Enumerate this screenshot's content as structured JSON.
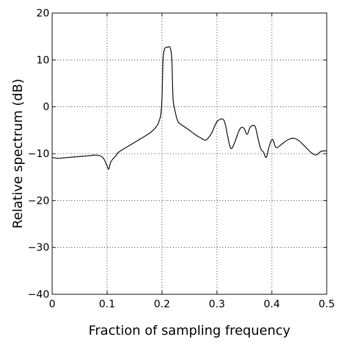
{
  "chart_data": {
    "type": "line",
    "title": "",
    "xlabel": "Fraction of sampling frequency",
    "ylabel": "Relative spectrum (dB)",
    "xlim": [
      0,
      0.5
    ],
    "ylim": [
      -40,
      20
    ],
    "xticks": [
      0,
      0.1,
      0.2,
      0.3,
      0.4,
      0.5
    ],
    "xtick_labels": [
      "0",
      "0.1",
      "0.2",
      "0.3",
      "0.4",
      "0.5"
    ],
    "yticks": [
      -40,
      -30,
      -20,
      -10,
      0,
      10,
      20
    ],
    "ytick_labels": [
      "−40",
      "−30",
      "−20",
      "−10",
      "0",
      "10",
      "20"
    ],
    "grid": true,
    "line_color": "#000000",
    "series": [
      {
        "x": [
          0.0,
          0.01,
          0.02,
          0.03,
          0.04,
          0.05,
          0.06,
          0.07,
          0.08,
          0.09,
          0.095,
          0.1,
          0.103,
          0.106,
          0.11,
          0.115,
          0.12,
          0.13,
          0.14,
          0.15,
          0.16,
          0.17,
          0.18,
          0.19,
          0.195,
          0.198,
          0.2,
          0.202,
          0.205,
          0.21,
          0.215,
          0.218,
          0.22,
          0.223,
          0.226,
          0.23,
          0.24,
          0.25,
          0.26,
          0.27,
          0.28,
          0.29,
          0.3,
          0.31,
          0.315,
          0.32,
          0.325,
          0.33,
          0.34,
          0.345,
          0.35,
          0.355,
          0.36,
          0.365,
          0.37,
          0.375,
          0.38,
          0.385,
          0.39,
          0.395,
          0.4,
          0.403,
          0.406,
          0.41,
          0.42,
          0.43,
          0.44,
          0.45,
          0.46,
          0.47,
          0.48,
          0.49,
          0.5
        ],
        "y": [
          -10.8,
          -11.0,
          -10.9,
          -10.8,
          -10.7,
          -10.6,
          -10.5,
          -10.4,
          -10.3,
          -10.6,
          -11.3,
          -12.6,
          -13.3,
          -12.0,
          -11.2,
          -10.6,
          -9.8,
          -9.0,
          -8.3,
          -7.6,
          -6.9,
          -6.2,
          -5.4,
          -4.2,
          -3.0,
          -1.5,
          2.0,
          10.0,
          12.4,
          12.7,
          12.6,
          10.0,
          2.0,
          -0.5,
          -2.0,
          -3.3,
          -4.2,
          -5.0,
          -5.9,
          -6.6,
          -7.1,
          -5.7,
          -3.2,
          -2.6,
          -3.6,
          -6.5,
          -8.8,
          -8.3,
          -5.2,
          -4.4,
          -4.7,
          -5.9,
          -4.5,
          -4.0,
          -4.3,
          -6.8,
          -9.0,
          -9.7,
          -10.8,
          -8.5,
          -7.0,
          -7.3,
          -8.4,
          -8.7,
          -7.8,
          -7.0,
          -6.7,
          -7.3,
          -8.4,
          -9.6,
          -10.3,
          -9.5,
          -9.4
        ]
      }
    ]
  }
}
